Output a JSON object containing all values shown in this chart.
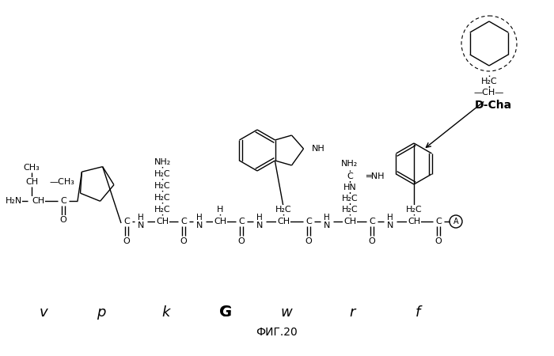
{
  "title": "ФИГ.20",
  "residue_labels": [
    "v",
    "p",
    "k",
    "G",
    "w",
    "r",
    "f"
  ],
  "dcha_label": "D-Cha",
  "background": "#ffffff",
  "line_color": "#000000"
}
